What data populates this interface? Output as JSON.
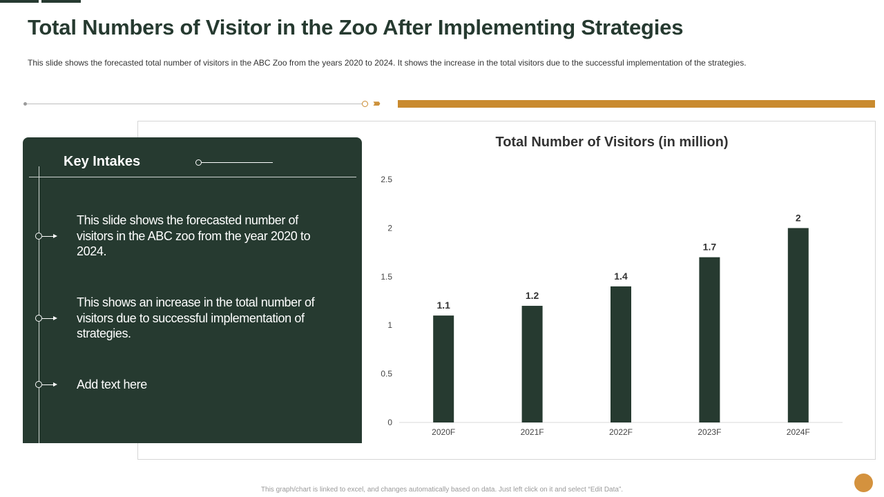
{
  "slide": {
    "title": "Total Numbers of Visitor in the Zoo After Implementing Strategies",
    "subtitle": "This slide shows the forecasted total number of visitors in the ABC Zoo from the years 2020 to 2024. It shows the increase in the total visitors due to the successful implementation of the strategies.",
    "footnote": "This graph/chart is linked to excel, and changes automatically based on data. Just left click on it and select “Edit Data”."
  },
  "panel": {
    "heading": "Key Intakes",
    "bullets": [
      "This slide shows the forecasted number of visitors in the ABC zoo from the year 2020 to 2024.",
      "This shows an increase in the total number of visitors due to successful implementation of strategies.",
      "Add text here"
    ]
  },
  "colors": {
    "primary": "#263a30",
    "accent": "#c98a2e",
    "corner": "#d4923e"
  },
  "chart_data": {
    "type": "bar",
    "title": "Total Number of Visitors (in million)",
    "categories": [
      "2020F",
      "2021F",
      "2022F",
      "2023F",
      "2024F"
    ],
    "values": [
      1.1,
      1.2,
      1.4,
      1.7,
      2
    ],
    "ylim": [
      0,
      2.5
    ],
    "yticks": [
      0,
      0.5,
      1,
      1.5,
      2,
      2.5
    ],
    "xlabel": "",
    "ylabel": "",
    "grid": false,
    "legend": "none"
  }
}
